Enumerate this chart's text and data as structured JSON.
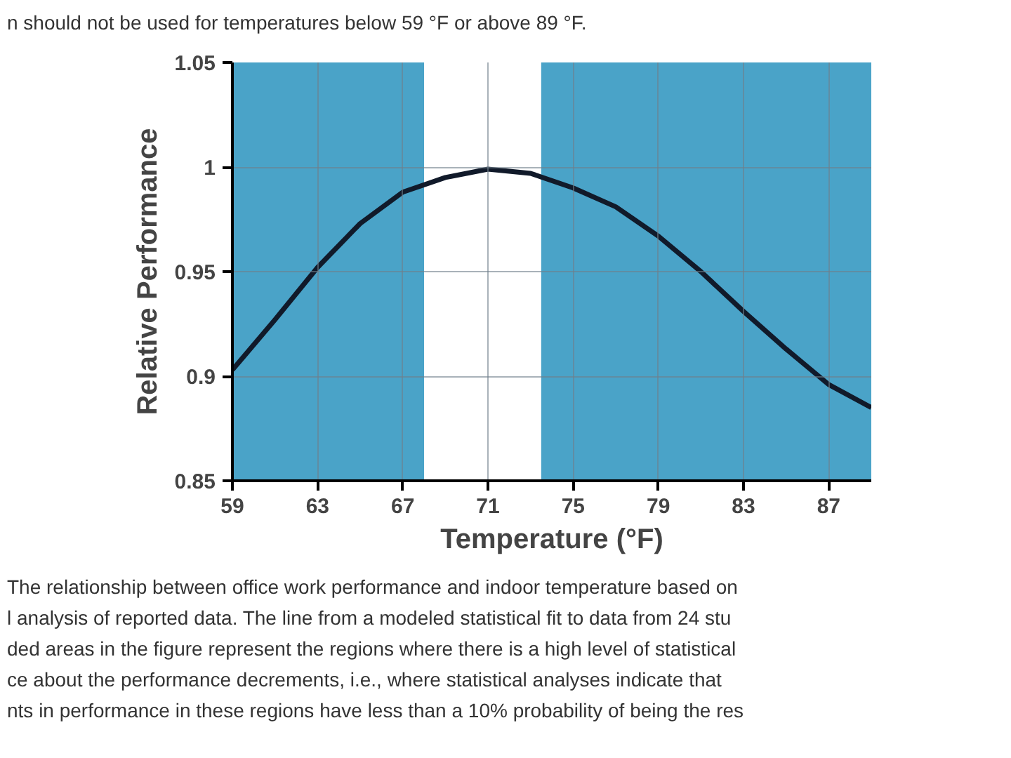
{
  "chart_data": {
    "type": "line",
    "xlabel": "Temperature (°F)",
    "ylabel": "Relative Performance",
    "x": [
      59,
      61,
      63,
      65,
      67,
      69,
      71,
      73,
      75,
      77,
      79,
      81,
      83,
      85,
      87,
      89
    ],
    "series": [
      {
        "color": "#111a2a",
        "values": [
          0.903,
          0.927,
          0.952,
          0.973,
          0.988,
          0.995,
          0.999,
          0.997,
          0.99,
          0.981,
          0.967,
          0.95,
          0.931,
          0.913,
          0.896,
          0.885
        ]
      }
    ],
    "xlim": [
      59,
      89
    ],
    "ylim": [
      0.85,
      1.05
    ],
    "xticks": [
      59,
      63,
      67,
      71,
      75,
      79,
      83,
      87
    ],
    "yticks": [
      0.85,
      0.9,
      0.95,
      1,
      1.05
    ],
    "grid": true,
    "line_style": "solid",
    "marker": "none",
    "bands": [
      {
        "axis": "x",
        "from": 59,
        "to": 68,
        "color": "#4aa3c8"
      },
      {
        "axis": "x",
        "from": 73.5,
        "to": 89,
        "color": "#4aa3c8"
      }
    ],
    "annotations": [
      "n should not be used for temperatures below 59 °F or above 89 °F.",
      "The relationship between office work performance and indoor temperature based on",
      "l analysis of reported data. The line from a modeled statistical fit to data from 24 stu",
      "ded areas in the figure represent the regions where there is a high level of statistical",
      "ce about the performance decrements, i.e., where statistical analyses indicate that",
      "nts in performance in these regions have less than a 10% probability of being the res"
    ]
  }
}
